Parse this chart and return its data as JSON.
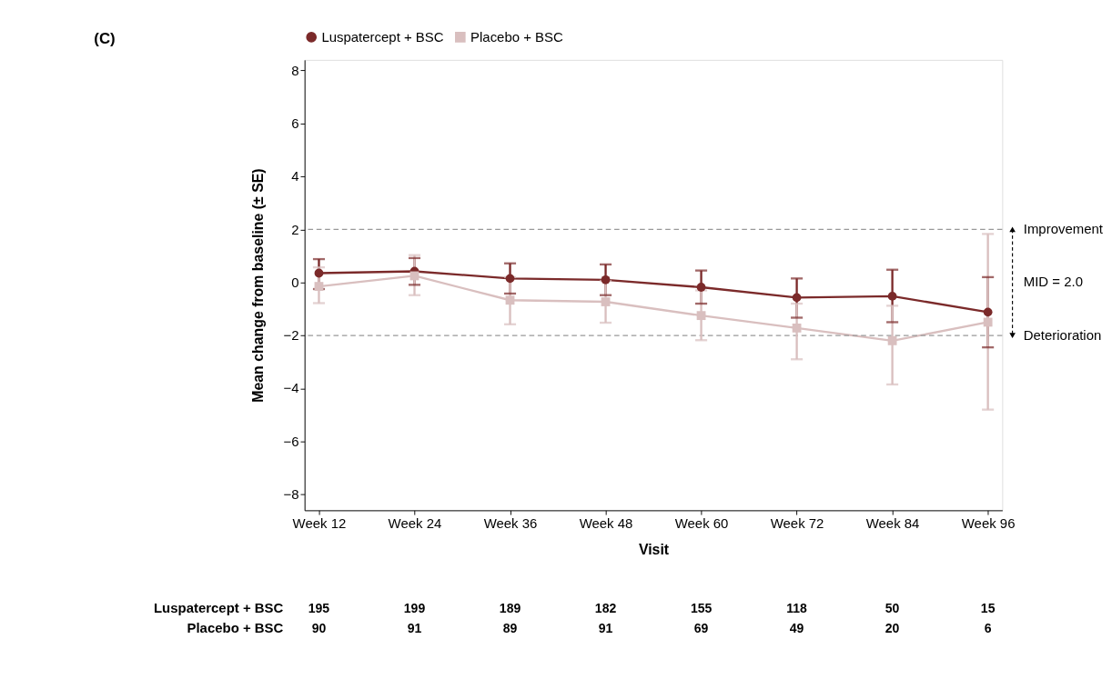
{
  "chart_data": {
    "type": "line",
    "title": "(C)",
    "xlabel": "Visit",
    "ylabel": "Mean change from baseline (± SE)",
    "categories": [
      "Week 12",
      "Week 24",
      "Week 36",
      "Week 48",
      "Week 60",
      "Week 72",
      "Week 84",
      "Week 96"
    ],
    "series": [
      {
        "name": "Luspatercept + BSC",
        "color": "#7b2a2a",
        "marker": "circle",
        "values": [
          0.35,
          0.42,
          0.15,
          0.1,
          -0.18,
          -0.57,
          -0.52,
          -1.12
        ],
        "errors": [
          [
            -0.25,
            0.88
          ],
          [
            -0.09,
            0.92
          ],
          [
            -0.42,
            0.72
          ],
          [
            -0.48,
            0.68
          ],
          [
            -0.8,
            0.45
          ],
          [
            -1.33,
            0.15
          ],
          [
            -1.5,
            0.48
          ],
          [
            -2.45,
            0.2
          ]
        ]
      },
      {
        "name": "Placebo + BSC",
        "color": "#d9bfbf",
        "marker": "square",
        "values": [
          -0.15,
          0.25,
          -0.67,
          -0.73,
          -1.25,
          -1.72,
          -2.2,
          -1.5
        ],
        "errors": [
          [
            -0.78,
            0.57
          ],
          [
            -0.48,
            1.03
          ],
          [
            -1.58,
            0.2
          ],
          [
            -1.52,
            0.06
          ],
          [
            -2.18,
            -0.3
          ],
          [
            -2.9,
            -0.8
          ],
          [
            -3.85,
            -0.88
          ],
          [
            -4.8,
            1.83
          ]
        ]
      }
    ],
    "ylim": [
      -8.6,
      8.4
    ],
    "yticks": [
      8,
      6,
      4,
      2,
      0,
      {
        "value": -2,
        "label": "−2"
      },
      {
        "value": -4,
        "label": "−4"
      },
      {
        "value": -6,
        "label": "−6"
      },
      {
        "value": -8,
        "label": "−8"
      }
    ],
    "ref_lines": [
      {
        "axis": "y",
        "value": 2,
        "label": "Improvement",
        "color": "#999999",
        "line_style": "dashed"
      },
      {
        "axis": "y",
        "value": -2,
        "label": "Deterioration",
        "color": "#999999",
        "line_style": "dashed"
      }
    ],
    "annotations": [
      "MID = 2.0",
      "Luspatercept + BSC",
      "195",
      "199",
      "189",
      "182",
      "155",
      "118",
      "50",
      "15",
      "Placebo + BSC",
      "90",
      "91",
      "89",
      "91",
      "69",
      "49",
      "20",
      "6"
    ],
    "grid": false,
    "legend": "top",
    "line_style": "solid"
  }
}
